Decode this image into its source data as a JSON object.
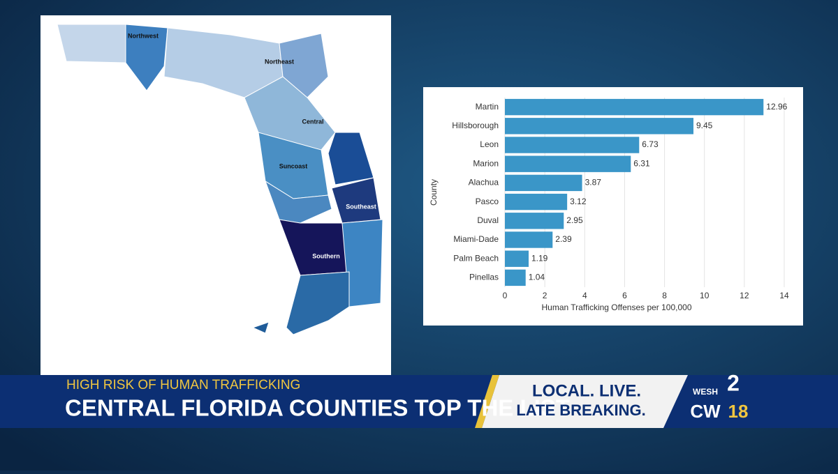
{
  "chart_data": {
    "type": "hbar",
    "categories": [
      "Martin",
      "Hillsborough",
      "Leon",
      "Marion",
      "Alachua",
      "Pasco",
      "Duval",
      "Miami-Dade",
      "Palm Beach",
      "Pinellas"
    ],
    "values": [
      12.96,
      9.45,
      6.73,
      6.31,
      3.87,
      3.12,
      2.95,
      2.39,
      1.19,
      1.04
    ],
    "color": "#3a96c8",
    "xlim": [
      0,
      14.35
    ],
    "xticks": [
      0,
      2,
      4,
      6,
      8,
      10,
      12,
      14
    ],
    "grid": true,
    "xlabel": "Human Trafficking Offenses per 100,000",
    "ylabel": "County"
  },
  "map": {
    "regions": [
      "Northwest",
      "Northeast",
      "Central",
      "Suncoast",
      "Southeast",
      "Southern"
    ]
  },
  "lower_third": {
    "kicker": "HIGH RISK OF HUMAN TRAFFICKING",
    "headline": "CENTRAL FLORIDA COUNTIES TOP THE LIST",
    "tagline": [
      "LOCAL. LIVE.",
      "LATE BREAKING."
    ],
    "logo": [
      "WESH",
      "2",
      "CW",
      "18"
    ]
  }
}
